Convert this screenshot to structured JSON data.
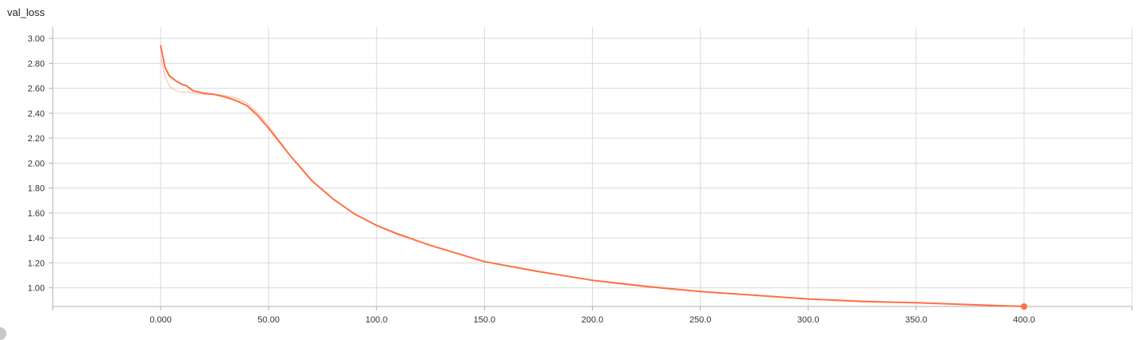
{
  "chart_data": {
    "type": "line",
    "title": "val_loss",
    "x_ticks": [
      "0.000",
      "50.00",
      "100.0",
      "150.0",
      "200.0",
      "250.0",
      "300.0",
      "350.0",
      "400.0"
    ],
    "x_tick_values": [
      0,
      50,
      100,
      150,
      200,
      250,
      300,
      350,
      400
    ],
    "y_ticks": [
      "1.00",
      "1.20",
      "1.40",
      "1.60",
      "1.80",
      "2.00",
      "2.20",
      "2.40",
      "2.60",
      "2.80",
      "3.00"
    ],
    "y_tick_values": [
      1.0,
      1.2,
      1.4,
      1.6,
      1.8,
      2.0,
      2.2,
      2.4,
      2.6,
      2.8,
      3.0
    ],
    "xlim": [
      -50,
      450
    ],
    "ylim": [
      0.85,
      3.09
    ],
    "grid": true,
    "colors": {
      "smoothed": "#ff7043",
      "raw": "#ffc8b8"
    },
    "series": [
      {
        "role": "smoothed",
        "x": [
          0,
          2,
          4,
          7,
          10,
          12,
          15,
          20,
          25,
          30,
          35,
          40,
          45,
          50,
          55,
          60,
          70,
          80,
          90,
          100,
          110,
          125,
          150,
          175,
          200,
          225,
          250,
          275,
          300,
          325,
          350,
          375,
          400
        ],
        "y": [
          2.94,
          2.77,
          2.7,
          2.66,
          2.63,
          2.62,
          2.58,
          2.56,
          2.55,
          2.53,
          2.5,
          2.46,
          2.38,
          2.28,
          2.17,
          2.06,
          1.86,
          1.71,
          1.59,
          1.5,
          1.43,
          1.34,
          1.21,
          1.13,
          1.06,
          1.01,
          0.97,
          0.94,
          0.91,
          0.89,
          0.88,
          0.865,
          0.85
        ]
      },
      {
        "role": "raw",
        "x": [
          0,
          2,
          4,
          6,
          9,
          12,
          16,
          20,
          25,
          30,
          35,
          40,
          45,
          50,
          55,
          60,
          70,
          80,
          90,
          100,
          125,
          150,
          200,
          250,
          300,
          350,
          400
        ],
        "y": [
          2.85,
          2.7,
          2.62,
          2.59,
          2.57,
          2.57,
          2.56,
          2.55,
          2.55,
          2.54,
          2.52,
          2.48,
          2.4,
          2.3,
          2.18,
          2.06,
          1.86,
          1.71,
          1.59,
          1.5,
          1.34,
          1.21,
          1.06,
          0.97,
          0.91,
          0.88,
          0.85
        ]
      }
    ],
    "last_point": {
      "x": 400,
      "y": 0.85
    }
  }
}
